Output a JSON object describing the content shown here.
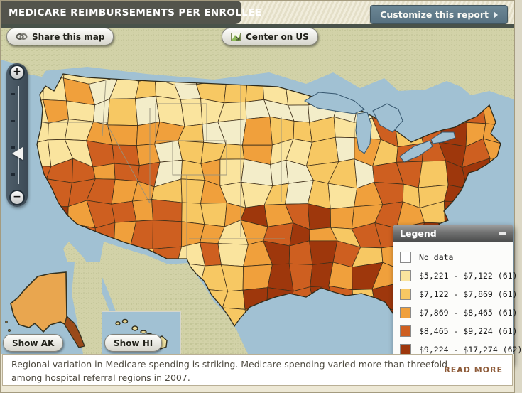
{
  "header": {
    "title": "MEDICARE REIMBURSEMENTS PER ENROLLEE",
    "customize_button_label": "Customize this report"
  },
  "map_toolbar": {
    "share_button_label": "Share this map",
    "center_button_label": "Center on US"
  },
  "zoom_control": {
    "zoom_in_label": "+",
    "zoom_out_label": "−"
  },
  "insets": {
    "alaska_button_label": "Show AK",
    "hawaii_button_label": "Show HI"
  },
  "legend": {
    "title": "Legend",
    "items": [
      {
        "label": "No data",
        "color": "#FFFFFF"
      },
      {
        "label": "$5,221 - $7,122 (61)",
        "color": "#FAE49E"
      },
      {
        "label": "$7,122 - $7,869 (61)",
        "color": "#F7C863"
      },
      {
        "label": "$7,869 - $8,465 (61)",
        "color": "#F0A03C"
      },
      {
        "label": "$8,465 - $9,224 (61)",
        "color": "#CE5F20"
      },
      {
        "label": "$9,224 - $17,274 (62)",
        "color": "#9E370C"
      }
    ]
  },
  "caption": {
    "text": "Regional variation in Medicare spending is striking. Medicare spending varied more than threefold among hospital referral regions in 2007.",
    "read_more_label": "READ MORE"
  },
  "map_colors": {
    "water": "#A1C1D3",
    "neighbor_land": "#D2D2A8",
    "pale_region": "#F3EDC9",
    "region_border": "#40301A"
  }
}
